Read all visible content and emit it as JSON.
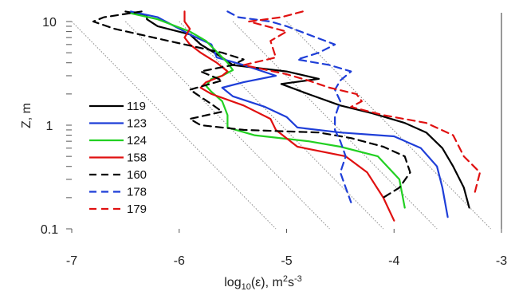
{
  "chart_data": {
    "type": "line",
    "title": "",
    "xlabel_text": "log",
    "xlabel_sub": "10",
    "xlabel_mid": "(ε), m",
    "xlabel_sup1": "2",
    "xlabel_s": "s",
    "xlabel_sup2": "-3",
    "ylabel": "Z, m",
    "xlim": [
      -7,
      -3
    ],
    "ylim": [
      0.1,
      10
    ],
    "y_scale": "log",
    "x_ticks": [
      -7,
      -6,
      -5,
      -4,
      -3
    ],
    "x_tick_labels": [
      "-7",
      "-6",
      "-5",
      "-4",
      "-3"
    ],
    "y_ticks": [
      0.1,
      1,
      10
    ],
    "y_tick_labels": [
      "0.1",
      "1",
      "10"
    ],
    "legend_position": "left",
    "reference_lines_note": "dotted diagonal guide lines",
    "reference_lines": [
      {
        "points": [
          [
            -7,
            10
          ],
          [
            -5.1,
            0.1
          ]
        ]
      },
      {
        "points": [
          [
            -6.5,
            10
          ],
          [
            -4.6,
            0.1
          ]
        ]
      },
      {
        "points": [
          [
            -6.0,
            10
          ],
          [
            -4.1,
            0.1
          ]
        ]
      },
      {
        "points": [
          [
            -5.5,
            10
          ],
          [
            -3.6,
            0.1
          ]
        ]
      },
      {
        "points": [
          [
            -5.0,
            10
          ],
          [
            -3.1,
            0.1
          ]
        ]
      }
    ],
    "series": [
      {
        "name": "119",
        "color": "#000000",
        "dash": "solid",
        "points": [
          [
            -6.5,
            12.5
          ],
          [
            -6.3,
            11.5
          ],
          [
            -6.3,
            10.5
          ],
          [
            -6.2,
            9.0
          ],
          [
            -5.9,
            7.5
          ],
          [
            -5.8,
            6.0
          ],
          [
            -5.6,
            4.5
          ],
          [
            -5.5,
            3.8
          ],
          [
            -5.0,
            3.3
          ],
          [
            -4.7,
            2.8
          ],
          [
            -5.05,
            2.5
          ],
          [
            -4.8,
            2.0
          ],
          [
            -4.5,
            1.55
          ],
          [
            -4.2,
            1.3
          ],
          [
            -3.9,
            1.05
          ],
          [
            -3.7,
            0.85
          ],
          [
            -3.55,
            0.6
          ],
          [
            -3.45,
            0.4
          ],
          [
            -3.35,
            0.25
          ],
          [
            -3.3,
            0.16
          ]
        ]
      },
      {
        "name": "123",
        "color": "#1e3ed8",
        "dash": "solid",
        "points": [
          [
            -6.45,
            12.5
          ],
          [
            -6.2,
            11.0
          ],
          [
            -5.9,
            7.5
          ],
          [
            -5.7,
            6.0
          ],
          [
            -5.65,
            4.5
          ],
          [
            -5.4,
            3.8
          ],
          [
            -5.1,
            3.0
          ],
          [
            -5.4,
            2.6
          ],
          [
            -5.6,
            2.3
          ],
          [
            -5.5,
            1.9
          ],
          [
            -5.2,
            1.5
          ],
          [
            -5.0,
            1.2
          ],
          [
            -4.9,
            0.95
          ],
          [
            -4.5,
            0.85
          ],
          [
            -4.0,
            0.78
          ],
          [
            -3.75,
            0.6
          ],
          [
            -3.6,
            0.4
          ],
          [
            -3.55,
            0.25
          ],
          [
            -3.5,
            0.13
          ]
        ]
      },
      {
        "name": "124",
        "color": "#22d022",
        "dash": "solid",
        "points": [
          [
            -6.45,
            12.0
          ],
          [
            -6.2,
            10.5
          ],
          [
            -5.9,
            8.0
          ],
          [
            -5.75,
            6.5
          ],
          [
            -5.55,
            4.0
          ],
          [
            -5.5,
            3.4
          ],
          [
            -5.6,
            3.0
          ],
          [
            -5.7,
            2.8
          ],
          [
            -5.75,
            2.4
          ],
          [
            -5.7,
            2.1
          ],
          [
            -5.6,
            1.7
          ],
          [
            -5.55,
            1.25
          ],
          [
            -5.55,
            0.95
          ],
          [
            -5.3,
            0.8
          ],
          [
            -4.8,
            0.7
          ],
          [
            -4.5,
            0.62
          ],
          [
            -4.15,
            0.5
          ],
          [
            -3.95,
            0.3
          ],
          [
            -3.9,
            0.16
          ]
        ]
      },
      {
        "name": "158",
        "color": "#e01010",
        "dash": "solid",
        "points": [
          [
            -5.95,
            12.5
          ],
          [
            -5.95,
            10.0
          ],
          [
            -5.9,
            8.5
          ],
          [
            -5.95,
            7.0
          ],
          [
            -5.9,
            6.0
          ],
          [
            -5.8,
            5.0
          ],
          [
            -5.65,
            4.0
          ],
          [
            -5.55,
            3.3
          ],
          [
            -5.6,
            3.0
          ],
          [
            -5.75,
            2.6
          ],
          [
            -5.8,
            2.3
          ],
          [
            -5.7,
            2.0
          ],
          [
            -5.4,
            1.55
          ],
          [
            -5.15,
            1.15
          ],
          [
            -5.1,
            0.9
          ],
          [
            -4.9,
            0.62
          ],
          [
            -4.45,
            0.5
          ],
          [
            -4.25,
            0.35
          ],
          [
            -4.1,
            0.2
          ],
          [
            -4.0,
            0.12
          ]
        ]
      },
      {
        "name": "160",
        "color": "#000000",
        "dash": "dashed",
        "points": [
          [
            -6.35,
            12.5
          ],
          [
            -6.7,
            11.0
          ],
          [
            -6.8,
            10.0
          ],
          [
            -6.6,
            8.5
          ],
          [
            -6.1,
            6.5
          ],
          [
            -5.6,
            5.0
          ],
          [
            -5.4,
            4.3
          ],
          [
            -5.5,
            3.8
          ],
          [
            -5.8,
            3.3
          ],
          [
            -5.6,
            2.7
          ],
          [
            -5.9,
            2.2
          ],
          [
            -5.7,
            1.6
          ],
          [
            -5.6,
            1.35
          ],
          [
            -5.9,
            1.15
          ],
          [
            -5.8,
            1.0
          ],
          [
            -5.4,
            0.9
          ],
          [
            -4.7,
            0.85
          ],
          [
            -4.4,
            0.75
          ],
          [
            -4.1,
            0.62
          ],
          [
            -3.9,
            0.5
          ],
          [
            -3.85,
            0.35
          ],
          [
            -3.95,
            0.25
          ],
          [
            -4.1,
            0.2
          ]
        ]
      },
      {
        "name": "178",
        "color": "#1e3ed8",
        "dash": "dashed",
        "points": [
          [
            -5.55,
            12.5
          ],
          [
            -5.45,
            11.0
          ],
          [
            -5.15,
            10.0
          ],
          [
            -5.0,
            9.0
          ],
          [
            -4.8,
            7.5
          ],
          [
            -4.55,
            6.0
          ],
          [
            -4.7,
            5.0
          ],
          [
            -4.9,
            4.3
          ],
          [
            -4.6,
            3.8
          ],
          [
            -4.4,
            3.3
          ],
          [
            -4.5,
            2.7
          ],
          [
            -4.55,
            2.2
          ],
          [
            -4.5,
            1.7
          ],
          [
            -4.55,
            1.2
          ],
          [
            -4.55,
            0.9
          ],
          [
            -4.5,
            0.7
          ],
          [
            -4.45,
            0.5
          ],
          [
            -4.5,
            0.35
          ],
          [
            -4.45,
            0.25
          ],
          [
            -4.4,
            0.18
          ]
        ]
      },
      {
        "name": "179",
        "color": "#e01010",
        "dash": "dashed",
        "points": [
          [
            -4.85,
            12.5
          ],
          [
            -5.05,
            11.0
          ],
          [
            -5.35,
            10.0
          ],
          [
            -5.0,
            8.0
          ],
          [
            -5.15,
            6.5
          ],
          [
            -5.1,
            4.5
          ],
          [
            -5.4,
            3.8
          ],
          [
            -5.0,
            3.1
          ],
          [
            -4.8,
            2.7
          ],
          [
            -4.6,
            2.3
          ],
          [
            -4.35,
            2.0
          ],
          [
            -4.3,
            1.7
          ],
          [
            -4.4,
            1.5
          ],
          [
            -4.1,
            1.25
          ],
          [
            -3.7,
            1.05
          ],
          [
            -3.45,
            0.8
          ],
          [
            -3.35,
            0.5
          ],
          [
            -3.2,
            0.35
          ],
          [
            -3.25,
            0.22
          ]
        ]
      }
    ]
  }
}
